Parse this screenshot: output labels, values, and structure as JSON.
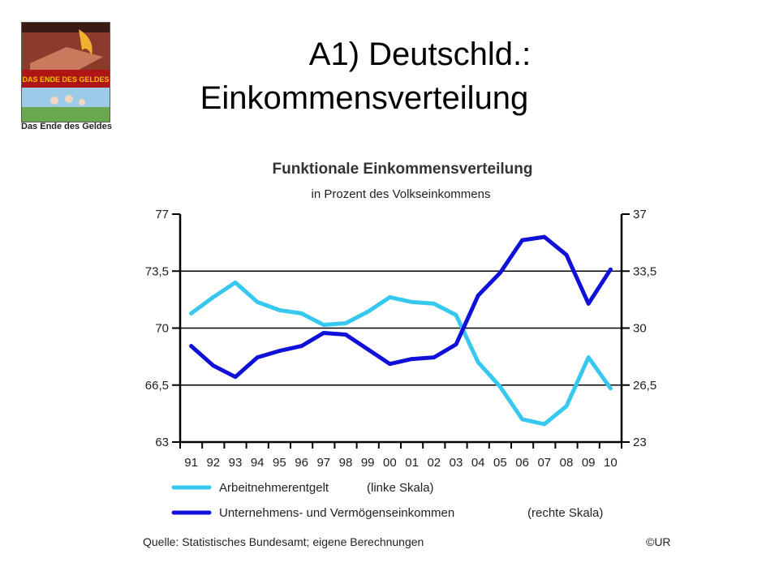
{
  "slide": {
    "title_line1": "A1) Deutschld.:",
    "title_line2": "Einkommensverteilung"
  },
  "book": {
    "cover_title": "DAS ENDE DES GELDES",
    "caption": "Das Ende des Geldes",
    "colors": {
      "top": "#8c3a2c",
      "band": "#b01515",
      "band_text": "#f2c200",
      "bottom_sky": "#9ccbe8",
      "bottom_grass": "#6aa84f"
    }
  },
  "colors": {
    "series1": "#36c8ee",
    "series2": "#1010d8",
    "axis": "#000000",
    "grid": "#000000"
  },
  "footer": {
    "source": "Quelle: Statistisches Bundesamt; eigene Berechnungen",
    "copyright": "©UR"
  },
  "chart_data": {
    "type": "line",
    "title": "Funktionale Einkommensverteilung",
    "subtitle": "in Prozent des Volkseinkommens",
    "categories": [
      "91",
      "92",
      "93",
      "94",
      "95",
      "96",
      "97",
      "98",
      "99",
      "00",
      "01",
      "02",
      "03",
      "04",
      "05",
      "06",
      "07",
      "08",
      "09",
      "10"
    ],
    "y_left": {
      "min": 63,
      "max": 77,
      "ticks": [
        "63",
        "66,5",
        "70",
        "73,5",
        "77"
      ],
      "tick_values": [
        63,
        66.5,
        70,
        73.5,
        77
      ]
    },
    "y_right": {
      "min": 23,
      "max": 37,
      "ticks": [
        "23",
        "26,5",
        "30",
        "33,5",
        "37"
      ],
      "tick_values": [
        23,
        26.5,
        30,
        33.5,
        37
      ]
    },
    "grid": "horizontal",
    "legend_position": "bottom",
    "series": [
      {
        "name": "Arbeitnehmerentgelt",
        "legend_suffix": "(linke Skala)",
        "axis": "left",
        "values": [
          70.9,
          71.9,
          72.8,
          71.6,
          71.1,
          70.9,
          70.2,
          70.3,
          71.0,
          71.9,
          71.6,
          71.5,
          70.8,
          67.9,
          66.4,
          64.4,
          64.1,
          65.2,
          68.2,
          66.3
        ]
      },
      {
        "name": "Unternehmens- und Vermögenseinkommen",
        "legend_suffix": "(rechte Skala)",
        "axis": "right",
        "values": [
          28.9,
          27.7,
          27.0,
          28.2,
          28.6,
          28.9,
          29.7,
          29.6,
          28.7,
          27.8,
          28.1,
          28.2,
          29.0,
          32.0,
          33.4,
          35.4,
          35.6,
          34.5,
          31.5,
          33.6
        ]
      }
    ]
  }
}
